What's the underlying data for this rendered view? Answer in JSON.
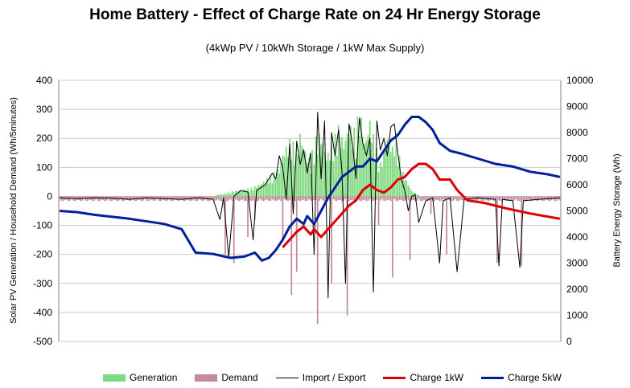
{
  "chart_data": {
    "type": "bar+line",
    "title": "Home Battery - Effect of Charge Rate on 24 Hr Energy Storage",
    "subtitle": "(4kWp PV / 10kWh Storage / 1kW Max Supply)",
    "ylabel_left": "Solar PV Generation / Household Demand (Wh/5minutes)",
    "ylabel_right": "Battery Energy Storage (Wh)",
    "ylim_left": [
      -500,
      400
    ],
    "ylim_right": [
      0,
      10000
    ],
    "yticks_left": [
      "400",
      "300",
      "200",
      "100",
      "0",
      "-100",
      "-200",
      "-300",
      "-400",
      "-500"
    ],
    "yticks_right": [
      "10000",
      "9000",
      "8000",
      "7000",
      "6000",
      "5000",
      "4000",
      "3000",
      "2000",
      "1000",
      "0"
    ],
    "x": {
      "unit": "5-minute interval",
      "count": 288,
      "labels": []
    },
    "colors": {
      "generation": "#7fd97f",
      "demand": "#c48a99",
      "import_export": "#000000",
      "charge_1kw": "#dd0000",
      "charge_5kw": "#00209a"
    },
    "series": [
      {
        "name": "Generation",
        "type": "bar",
        "axis": "left",
        "note": "zero overnight; green bars rise from 0 around index 88 to ~200-320 Wh at midday and fall to 0 near index 200",
        "peaks": [
          [
            90,
            5
          ],
          [
            95,
            10
          ],
          [
            100,
            20
          ],
          [
            105,
            25
          ],
          [
            110,
            30
          ],
          [
            115,
            45
          ],
          [
            118,
            60
          ],
          [
            122,
            80
          ],
          [
            126,
            100
          ],
          [
            128,
            160
          ],
          [
            130,
            180
          ],
          [
            133,
            210
          ],
          [
            136,
            150
          ],
          [
            138,
            230
          ],
          [
            141,
            170
          ],
          [
            144,
            120
          ],
          [
            146,
            200
          ],
          [
            150,
            230
          ],
          [
            153,
            150
          ],
          [
            156,
            180
          ],
          [
            160,
            250
          ],
          [
            163,
            200
          ],
          [
            166,
            260
          ],
          [
            170,
            230
          ],
          [
            172,
            320
          ],
          [
            175,
            200
          ],
          [
            178,
            280
          ],
          [
            181,
            190
          ],
          [
            184,
            120
          ],
          [
            188,
            220
          ],
          [
            191,
            180
          ],
          [
            193,
            220
          ],
          [
            196,
            100
          ],
          [
            199,
            60
          ],
          [
            202,
            20
          ],
          [
            206,
            5
          ]
        ]
      },
      {
        "name": "Demand",
        "type": "bar",
        "axis": "left",
        "note": "mostly -10 to -20 Wh background load with occasional deep spikes",
        "baseline": -15,
        "spikes": [
          [
            95,
            -200
          ],
          [
            100,
            -230
          ],
          [
            108,
            -140
          ],
          [
            112,
            -80
          ],
          [
            128,
            -150
          ],
          [
            133,
            -340
          ],
          [
            136,
            -260
          ],
          [
            148,
            -440
          ],
          [
            156,
            -300
          ],
          [
            165,
            -410
          ],
          [
            183,
            -100
          ],
          [
            191,
            -280
          ],
          [
            201,
            -220
          ],
          [
            213,
            -60
          ],
          [
            222,
            -200
          ],
          [
            251,
            -230
          ],
          [
            265,
            -240
          ]
        ]
      },
      {
        "name": "Import / Export",
        "type": "line",
        "axis": "left",
        "points": [
          [
            0,
            -5
          ],
          [
            10,
            -8
          ],
          [
            20,
            -5
          ],
          [
            30,
            -6
          ],
          [
            40,
            -10
          ],
          [
            50,
            -5
          ],
          [
            60,
            -8
          ],
          [
            70,
            -10
          ],
          [
            80,
            -5
          ],
          [
            88,
            -10
          ],
          [
            92,
            -80
          ],
          [
            94,
            -5
          ],
          [
            97,
            -210
          ],
          [
            100,
            0
          ],
          [
            104,
            20
          ],
          [
            108,
            15
          ],
          [
            111,
            -150
          ],
          [
            113,
            20
          ],
          [
            118,
            40
          ],
          [
            120,
            60
          ],
          [
            122,
            80
          ],
          [
            124,
            60
          ],
          [
            126,
            140
          ],
          [
            128,
            100
          ],
          [
            130,
            -10
          ],
          [
            132,
            180
          ],
          [
            134,
            -60
          ],
          [
            136,
            190
          ],
          [
            138,
            110
          ],
          [
            140,
            160
          ],
          [
            142,
            80
          ],
          [
            144,
            150
          ],
          [
            146,
            -200
          ],
          [
            148,
            290
          ],
          [
            150,
            60
          ],
          [
            152,
            260
          ],
          [
            154,
            -350
          ],
          [
            156,
            220
          ],
          [
            158,
            140
          ],
          [
            160,
            230
          ],
          [
            162,
            80
          ],
          [
            164,
            -300
          ],
          [
            166,
            250
          ],
          [
            168,
            180
          ],
          [
            170,
            60
          ],
          [
            172,
            270
          ],
          [
            174,
            180
          ],
          [
            176,
            140
          ],
          [
            178,
            200
          ],
          [
            180,
            -330
          ],
          [
            182,
            260
          ],
          [
            184,
            160
          ],
          [
            186,
            200
          ],
          [
            188,
            140
          ],
          [
            190,
            240
          ],
          [
            192,
            250
          ],
          [
            194,
            150
          ],
          [
            196,
            60
          ],
          [
            198,
            20
          ],
          [
            200,
            -50
          ],
          [
            202,
            0
          ],
          [
            204,
            5
          ],
          [
            206,
            -90
          ],
          [
            210,
            -15
          ],
          [
            214,
            -5
          ],
          [
            218,
            -230
          ],
          [
            220,
            -15
          ],
          [
            224,
            -5
          ],
          [
            228,
            -260
          ],
          [
            232,
            -10
          ],
          [
            240,
            -5
          ],
          [
            250,
            -10
          ],
          [
            252,
            -240
          ],
          [
            254,
            -10
          ],
          [
            260,
            -15
          ],
          [
            264,
            -245
          ],
          [
            266,
            -15
          ],
          [
            275,
            -10
          ],
          [
            287,
            -5
          ]
        ]
      },
      {
        "name": "Charge 1kW",
        "type": "line",
        "axis": "right",
        "points": [
          [
            128,
            3600
          ],
          [
            132,
            3900
          ],
          [
            136,
            4200
          ],
          [
            140,
            4400
          ],
          [
            144,
            4100
          ],
          [
            146,
            4300
          ],
          [
            150,
            4000
          ],
          [
            154,
            4300
          ],
          [
            158,
            4600
          ],
          [
            162,
            4900
          ],
          [
            166,
            5200
          ],
          [
            170,
            5400
          ],
          [
            174,
            5800
          ],
          [
            178,
            6000
          ],
          [
            182,
            5800
          ],
          [
            186,
            5700
          ],
          [
            190,
            5900
          ],
          [
            194,
            6200
          ],
          [
            198,
            6300
          ],
          [
            202,
            6600
          ],
          [
            206,
            6800
          ],
          [
            210,
            6800
          ],
          [
            214,
            6600
          ],
          [
            218,
            6200
          ],
          [
            224,
            6200
          ],
          [
            228,
            5800
          ],
          [
            234,
            5400
          ],
          [
            244,
            5300
          ],
          [
            256,
            5100
          ],
          [
            270,
            4900
          ],
          [
            287,
            4700
          ]
        ]
      },
      {
        "name": "Charge 5kW",
        "type": "line",
        "axis": "right",
        "points": [
          [
            0,
            5000
          ],
          [
            10,
            4950
          ],
          [
            20,
            4850
          ],
          [
            40,
            4700
          ],
          [
            60,
            4500
          ],
          [
            70,
            4300
          ],
          [
            78,
            3400
          ],
          [
            88,
            3350
          ],
          [
            98,
            3200
          ],
          [
            106,
            3250
          ],
          [
            112,
            3400
          ],
          [
            116,
            3100
          ],
          [
            120,
            3200
          ],
          [
            124,
            3500
          ],
          [
            128,
            3900
          ],
          [
            132,
            4400
          ],
          [
            136,
            4700
          ],
          [
            140,
            4500
          ],
          [
            142,
            4800
          ],
          [
            146,
            4500
          ],
          [
            150,
            5000
          ],
          [
            154,
            5500
          ],
          [
            158,
            5900
          ],
          [
            162,
            6300
          ],
          [
            166,
            6500
          ],
          [
            170,
            6700
          ],
          [
            174,
            6700
          ],
          [
            178,
            7000
          ],
          [
            182,
            6900
          ],
          [
            186,
            7300
          ],
          [
            190,
            7700
          ],
          [
            194,
            7900
          ],
          [
            198,
            8300
          ],
          [
            202,
            8600
          ],
          [
            206,
            8600
          ],
          [
            210,
            8400
          ],
          [
            214,
            8100
          ],
          [
            218,
            7600
          ],
          [
            224,
            7300
          ],
          [
            230,
            7200
          ],
          [
            240,
            7000
          ],
          [
            250,
            6800
          ],
          [
            260,
            6700
          ],
          [
            270,
            6500
          ],
          [
            280,
            6400
          ],
          [
            287,
            6300
          ]
        ]
      }
    ],
    "legend": {
      "position": "bottom",
      "items": [
        "Generation",
        "Demand",
        "Import / Export",
        "Charge 1kW",
        "Charge 5kW"
      ]
    },
    "grid": true
  }
}
